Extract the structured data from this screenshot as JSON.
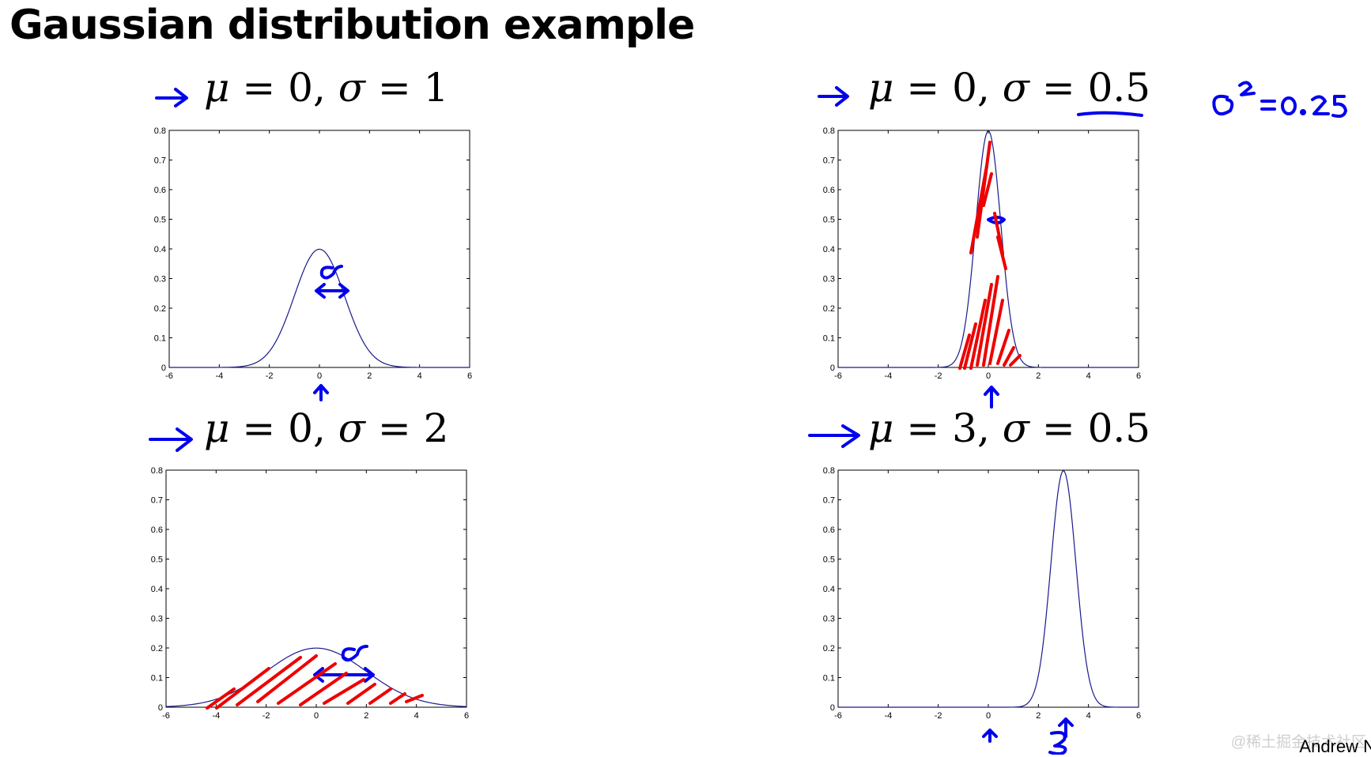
{
  "title": "Gaussian distribution example",
  "footer": "Andrew N",
  "watermark": "@稀土掘金技术社区",
  "colors": {
    "curve": "#1a1a8c",
    "ink_blue": "#0000ee",
    "ink_red": "#ee0000"
  },
  "chart_data": [
    {
      "type": "line",
      "formula": {
        "mu_sym": "μ",
        "mu_rest": " = 0, ",
        "sigma_sym": "σ",
        "sigma_rest": " = 1"
      },
      "mu": 0,
      "sigma": 1,
      "xlim": [
        -6,
        6
      ],
      "ylim": [
        0,
        0.8
      ],
      "xticks": [
        "-6",
        "-4",
        "-2",
        "0",
        "2",
        "4",
        "6"
      ],
      "yticks": [
        "0",
        "0.1",
        "0.2",
        "0.3",
        "0.4",
        "0.5",
        "0.6",
        "0.7",
        "0.8"
      ],
      "grid": false
    },
    {
      "type": "line",
      "formula": {
        "mu_sym": "μ",
        "mu_rest": " = 0, ",
        "sigma_sym": "σ",
        "sigma_rest": " = 0.5"
      },
      "mu": 0,
      "sigma": 0.5,
      "xlim": [
        -6,
        6
      ],
      "ylim": [
        0,
        0.8
      ],
      "xticks": [
        "-6",
        "-4",
        "-2",
        "0",
        "2",
        "4",
        "6"
      ],
      "yticks": [
        "0",
        "0.1",
        "0.2",
        "0.3",
        "0.4",
        "0.5",
        "0.6",
        "0.7",
        "0.8"
      ],
      "grid": false
    },
    {
      "type": "line",
      "formula": {
        "mu_sym": "μ",
        "mu_rest": " = 0, ",
        "sigma_sym": "σ",
        "sigma_rest": " = 2"
      },
      "mu": 0,
      "sigma": 2,
      "xlim": [
        -6,
        6
      ],
      "ylim": [
        0,
        0.8
      ],
      "xticks": [
        "-6",
        "-4",
        "-2",
        "0",
        "2",
        "4",
        "6"
      ],
      "yticks": [
        "0",
        "0.1",
        "0.2",
        "0.3",
        "0.4",
        "0.5",
        "0.6",
        "0.7",
        "0.8"
      ],
      "grid": false
    },
    {
      "type": "line",
      "formula": {
        "mu_sym": "μ",
        "mu_rest": " = 3, ",
        "sigma_sym": "σ",
        "sigma_rest": " = 0.5"
      },
      "mu": 3,
      "sigma": 0.5,
      "xlim": [
        -6,
        6
      ],
      "ylim": [
        0,
        0.8
      ],
      "xticks": [
        "-6",
        "-4",
        "-2",
        "0",
        "2",
        "4",
        "6"
      ],
      "yticks": [
        "0",
        "0.1",
        "0.2",
        "0.3",
        "0.4",
        "0.5",
        "0.6",
        "0.7",
        "0.8"
      ],
      "grid": false
    }
  ]
}
